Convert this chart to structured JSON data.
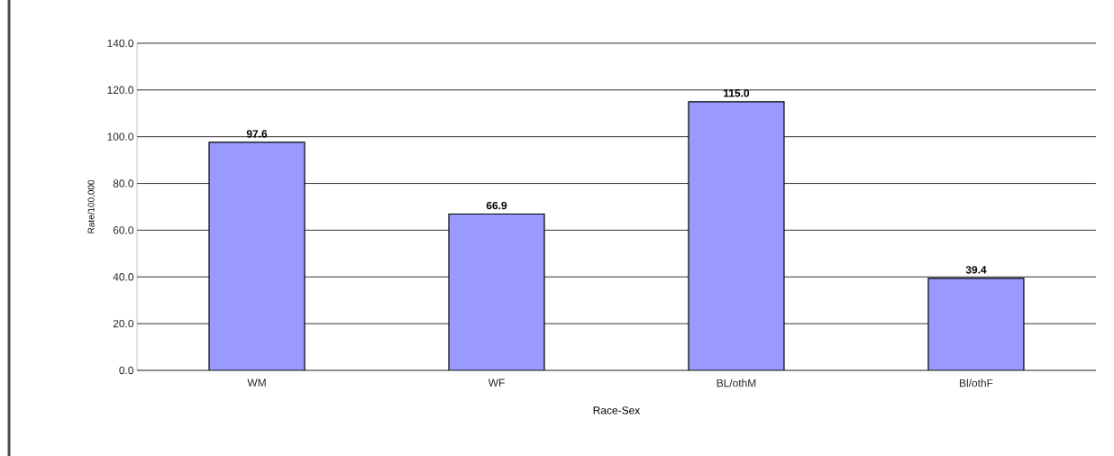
{
  "chart_data": {
    "type": "bar",
    "xlabel": "Race-Sex",
    "ylabel": "Rate/100,000",
    "categories": [
      "WM",
      "WF",
      "BL/othM",
      "Bl/othF"
    ],
    "values": [
      97.6,
      66.9,
      115.0,
      39.4
    ],
    "color": "#9999ff",
    "ylim": [
      0,
      140
    ],
    "yticks": [
      {
        "value": 0,
        "label": "0.0"
      },
      {
        "value": 20,
        "label": "20.0"
      },
      {
        "value": 40,
        "label": "40.0"
      },
      {
        "value": 60,
        "label": "60.0"
      },
      {
        "value": 80,
        "label": "80.0"
      },
      {
        "value": 100,
        "label": "100.0"
      },
      {
        "value": 120,
        "label": "120.0"
      },
      {
        "value": 140,
        "label": "140.0"
      }
    ],
    "value_labels": [
      "97.6",
      "66.9",
      "115.0",
      "39.4"
    ],
    "grid": "y"
  }
}
